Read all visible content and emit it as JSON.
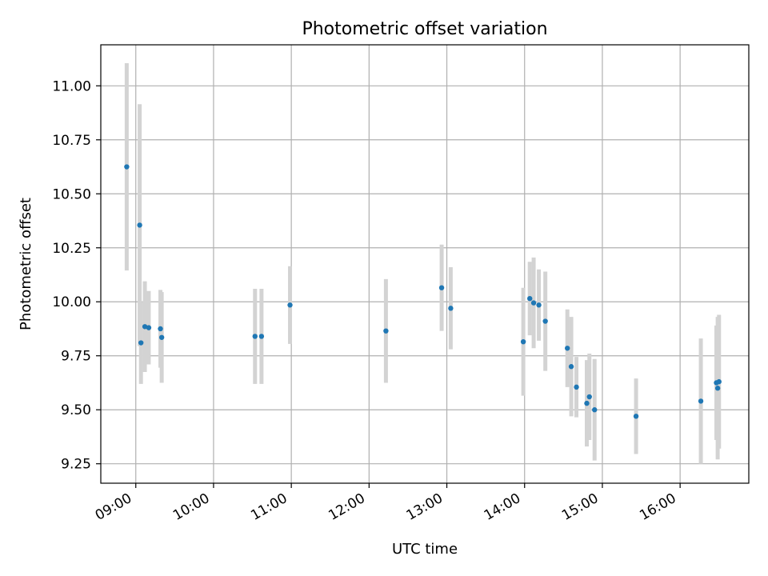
{
  "chart_data": {
    "type": "scatter",
    "title": "Photometric offset variation",
    "xlabel": "UTC time",
    "ylabel": "Photometric offset",
    "grid": true,
    "x_unit": "UTC time (HH:MM)",
    "xlim": [
      "08:33",
      "16:53"
    ],
    "ylim": [
      9.16,
      11.19
    ],
    "x_ticks": [
      "09:00",
      "10:00",
      "11:00",
      "12:00",
      "13:00",
      "14:00",
      "15:00",
      "16:00"
    ],
    "y_ticks": [
      "9.25",
      "9.50",
      "9.75",
      "10.00",
      "10.25",
      "10.50",
      "10.75",
      "11.00"
    ],
    "colors": {
      "point": "#1f77b4",
      "errorbar": "#d3d3d3",
      "grid": "#b0b0b0"
    },
    "series": [
      {
        "points": [
          {
            "x": "08:53",
            "y": 10.625,
            "err": 0.48
          },
          {
            "x": "09:03",
            "y": 10.355,
            "err": 0.56
          },
          {
            "x": "09:04",
            "y": 9.81,
            "err": 0.19
          },
          {
            "x": "09:07",
            "y": 9.885,
            "err": 0.21
          },
          {
            "x": "09:10",
            "y": 9.88,
            "err": 0.17
          },
          {
            "x": "09:19",
            "y": 9.875,
            "err": 0.18
          },
          {
            "x": "09:20",
            "y": 9.835,
            "err": 0.21
          },
          {
            "x": "10:32",
            "y": 9.84,
            "err": 0.22
          },
          {
            "x": "10:37",
            "y": 9.84,
            "err": 0.22
          },
          {
            "x": "10:59",
            "y": 9.985,
            "err": 0.18
          },
          {
            "x": "12:13",
            "y": 9.865,
            "err": 0.24
          },
          {
            "x": "12:56",
            "y": 10.065,
            "err": 0.2
          },
          {
            "x": "13:03",
            "y": 9.97,
            "err": 0.19
          },
          {
            "x": "13:59",
            "y": 9.815,
            "err": 0.25
          },
          {
            "x": "14:04",
            "y": 10.015,
            "err": 0.17
          },
          {
            "x": "14:07",
            "y": 9.995,
            "err": 0.21
          },
          {
            "x": "14:11",
            "y": 9.985,
            "err": 0.165
          },
          {
            "x": "14:16",
            "y": 9.91,
            "err": 0.23
          },
          {
            "x": "14:33",
            "y": 9.785,
            "err": 0.18
          },
          {
            "x": "14:36",
            "y": 9.7,
            "err": 0.23
          },
          {
            "x": "14:40",
            "y": 9.605,
            "err": 0.14
          },
          {
            "x": "14:48",
            "y": 9.53,
            "err": 0.2
          },
          {
            "x": "14:50",
            "y": 9.56,
            "err": 0.2
          },
          {
            "x": "14:54",
            "y": 9.5,
            "err": 0.235
          },
          {
            "x": "15:26",
            "y": 9.47,
            "err": 0.175
          },
          {
            "x": "16:16",
            "y": 9.54,
            "err": 0.29
          },
          {
            "x": "16:28",
            "y": 9.625,
            "err": 0.265
          },
          {
            "x": "16:29",
            "y": 9.6,
            "err": 0.33
          },
          {
            "x": "16:30",
            "y": 9.63,
            "err": 0.31
          }
        ]
      }
    ]
  }
}
